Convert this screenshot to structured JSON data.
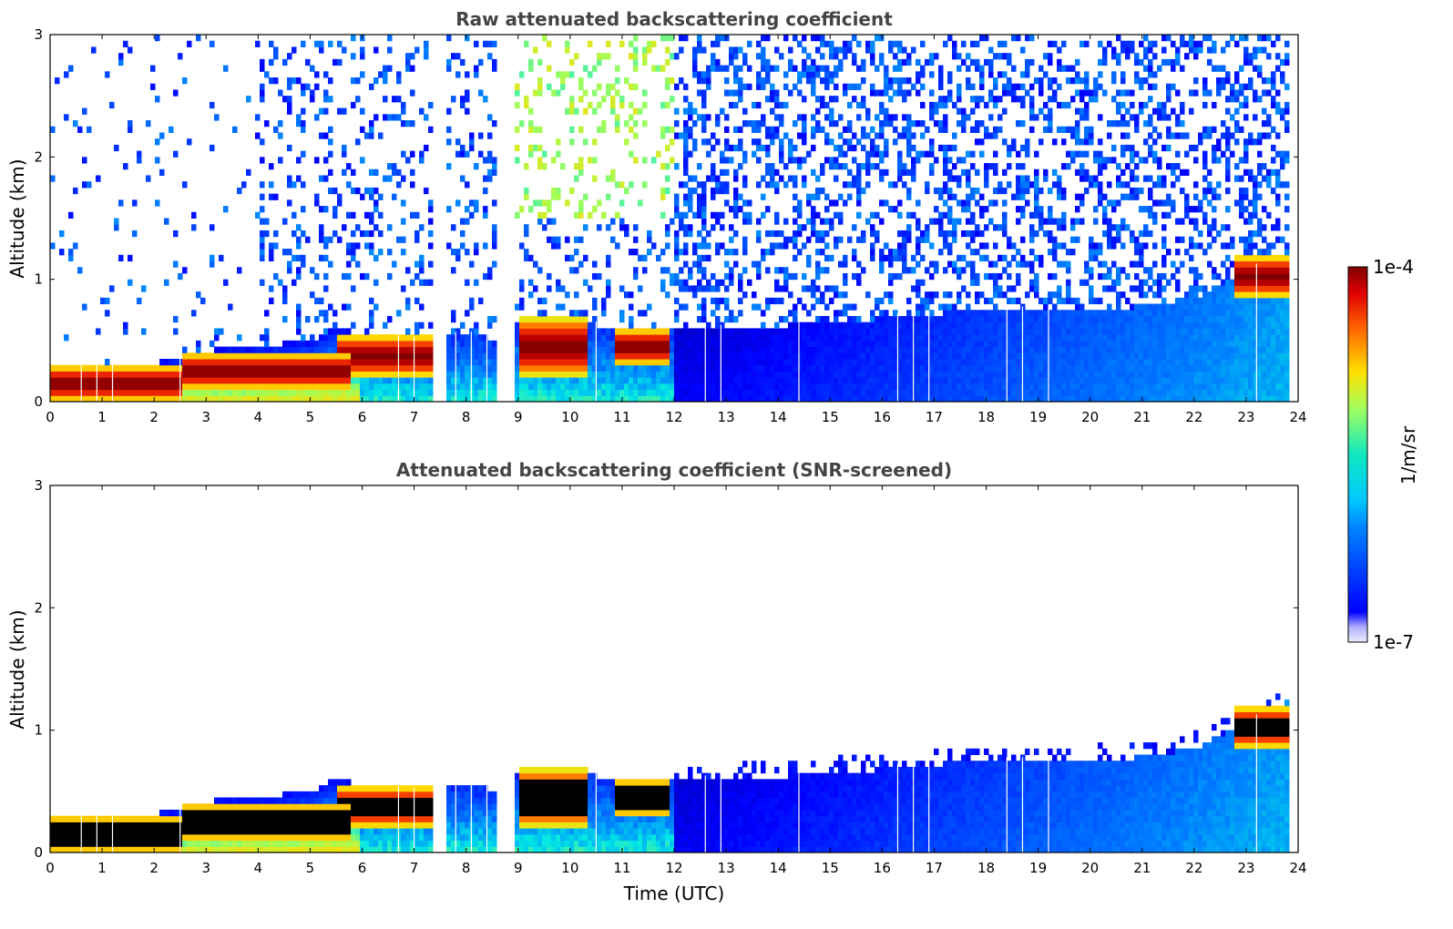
{
  "chart_data": [
    {
      "type": "heatmap",
      "title": "Raw attenuated backscattering coefficient",
      "xlabel": "",
      "ylabel": "Altitude (km)",
      "xlim": [
        0,
        24
      ],
      "ylim": [
        0,
        3
      ],
      "xticks": [
        "0",
        "1",
        "2",
        "3",
        "4",
        "5",
        "6",
        "7",
        "8",
        "9",
        "10",
        "11",
        "12",
        "13",
        "14",
        "15",
        "16",
        "17",
        "18",
        "19",
        "20",
        "21",
        "22",
        "23",
        "24"
      ],
      "yticks": [
        "0",
        "1",
        "2",
        "3"
      ],
      "colorscale": "jet",
      "boundary_layer_top_km": [
        [
          0,
          0.3
        ],
        [
          1,
          0.32
        ],
        [
          2,
          0.32
        ],
        [
          2.5,
          0.35
        ],
        [
          3,
          0.42
        ],
        [
          4,
          0.45
        ],
        [
          5,
          0.5
        ],
        [
          5.5,
          0.6
        ],
        [
          6,
          0.55
        ],
        [
          7,
          0.5
        ],
        [
          8,
          0.55
        ],
        [
          8.8,
          0.5
        ],
        [
          9,
          0.68
        ],
        [
          10,
          0.65
        ],
        [
          11,
          0.6
        ],
        [
          12,
          0.6
        ],
        [
          13,
          0.6
        ],
        [
          14,
          0.62
        ],
        [
          15,
          0.65
        ],
        [
          16,
          0.68
        ],
        [
          17,
          0.72
        ],
        [
          18,
          0.75
        ],
        [
          19,
          0.75
        ],
        [
          20,
          0.75
        ],
        [
          21,
          0.78
        ],
        [
          22,
          0.85
        ],
        [
          23,
          1.05
        ],
        [
          23.8,
          1.25
        ]
      ],
      "strong_layers": [
        {
          "t0": 0,
          "t1": 2.5,
          "z0": 0.0,
          "z1": 0.3
        },
        {
          "t0": 2.5,
          "t1": 5.8,
          "z0": 0.1,
          "z1": 0.4
        },
        {
          "t0": 5.5,
          "t1": 7.5,
          "z0": 0.2,
          "z1": 0.55
        },
        {
          "t0": 9.0,
          "t1": 10.3,
          "z0": 0.2,
          "z1": 0.7
        },
        {
          "t0": 10.9,
          "t1": 11.9,
          "z0": 0.3,
          "z1": 0.6
        },
        {
          "t0": 22.8,
          "t1": 23.8,
          "z0": 0.85,
          "z1": 1.2
        }
      ],
      "data_gaps_utc": [
        [
          7.4,
          7.6
        ],
        [
          8.55,
          8.9
        ]
      ]
    },
    {
      "type": "heatmap",
      "title": "Attenuated backscattering coefficient (SNR-screened)",
      "xlabel": "Time (UTC)",
      "ylabel": "Altitude (km)",
      "xlim": [
        0,
        24
      ],
      "ylim": [
        0,
        3
      ],
      "xticks": [
        "0",
        "1",
        "2",
        "3",
        "4",
        "5",
        "6",
        "7",
        "8",
        "9",
        "10",
        "11",
        "12",
        "13",
        "14",
        "15",
        "16",
        "17",
        "18",
        "19",
        "20",
        "21",
        "22",
        "23",
        "24"
      ],
      "yticks": [
        "0",
        "1",
        "2",
        "3"
      ],
      "colorscale": "jet"
    }
  ],
  "colorbar": {
    "max_label": "1e-4",
    "min_label": "1e-7",
    "unit_label": "1/m/sr"
  }
}
